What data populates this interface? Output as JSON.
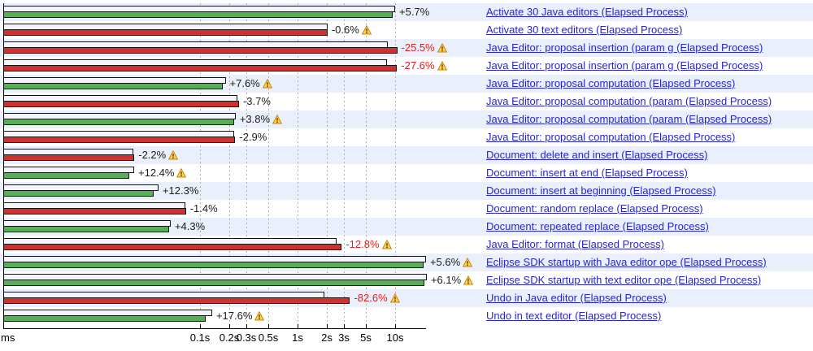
{
  "colors": {
    "row_bg_alt": "#e9effb",
    "row_bg": "#ffffff",
    "reference_bar_fill": "#f4f4fb",
    "bar_border": "#141414",
    "improvement_green": "#55b055",
    "regression_red": "#cf3030",
    "link_blue": "#2626cc",
    "percent_label_black": "#1c1c1c",
    "percent_label_red": "#e41c1c",
    "gridline_gray": "#b0b0b0",
    "warning_icon_fill": "#ffd24d",
    "warning_icon_border": "#c8830e",
    "warning_icon_glyph": "#5a3a00"
  },
  "icons": {
    "warning": "warning-triangle-icon"
  },
  "chart_data": {
    "type": "bar",
    "orientation": "horizontal",
    "scale": "logarithmic-time",
    "bars_per_row": [
      "reference elapsed time (white)",
      "current elapsed time (green=faster, red=slower)"
    ],
    "axis": {
      "unit_label": "ms",
      "ticks": [
        {
          "label": "ms",
          "ms": 1,
          "gridline": false
        },
        {
          "label": "0.1s",
          "ms": 100,
          "gridline": true
        },
        {
          "label": "0.2s",
          "ms": 200,
          "gridline": true
        },
        {
          "label": "0.3s",
          "ms": 300,
          "gridline": true
        },
        {
          "label": "0.5s",
          "ms": 500,
          "gridline": true
        },
        {
          "label": "1s",
          "ms": 1000,
          "gridline": true
        },
        {
          "label": "2s",
          "ms": 2000,
          "gridline": true
        },
        {
          "label": "3s",
          "ms": 3000,
          "gridline": true
        },
        {
          "label": "5s",
          "ms": 5000,
          "gridline": true
        },
        {
          "label": "10s",
          "ms": 10000,
          "gridline": true
        }
      ]
    },
    "series": [
      {
        "name": "Activate 30 Java editors (Elapsed Process)",
        "percent": "+5.7%",
        "percent_red": false,
        "warning": false,
        "regression": false,
        "ref_ms": 10000,
        "cur_ms": 9460
      },
      {
        "name": "Activate 30 text editors (Elapsed Process)",
        "percent": "-0.6%",
        "percent_red": false,
        "warning": true,
        "regression": true,
        "ref_ms": 2020,
        "cur_ms": 2032
      },
      {
        "name": "Java Editor: proposal insertion (param g (Elapsed Process)",
        "percent": "-25.5%",
        "percent_red": true,
        "warning": true,
        "regression": true,
        "ref_ms": 8370,
        "cur_ms": 10500
      },
      {
        "name": "Java Editor: proposal insertion (param g (Elapsed Process)",
        "percent": "-27.6%",
        "percent_red": true,
        "warning": true,
        "regression": true,
        "ref_ms": 8200,
        "cur_ms": 10460
      },
      {
        "name": "Java Editor: proposal computation (Elapsed Process)",
        "percent": "+7.6%",
        "percent_red": false,
        "warning": true,
        "regression": false,
        "ref_ms": 184,
        "cur_ms": 171
      },
      {
        "name": "Java Editor: proposal computation (param (Elapsed Process)",
        "percent": "-3.7%",
        "percent_red": false,
        "warning": false,
        "regression": true,
        "ref_ms": 243,
        "cur_ms": 252
      },
      {
        "name": "Java Editor: proposal computation (param (Elapsed Process)",
        "percent": "+3.8%",
        "percent_red": false,
        "warning": true,
        "regression": false,
        "ref_ms": 233,
        "cur_ms": 225
      },
      {
        "name": "Java Editor: proposal computation (Elapsed Process)",
        "percent": "-2.9%",
        "percent_red": false,
        "warning": false,
        "regression": true,
        "ref_ms": 225,
        "cur_ms": 231
      },
      {
        "name": "Document: delete and insert (Elapsed Process)",
        "percent": "-2.2%",
        "percent_red": false,
        "warning": true,
        "regression": true,
        "ref_ms": 20.9,
        "cur_ms": 21.4
      },
      {
        "name": "Document: insert at end (Elapsed Process)",
        "percent": "+12.4%",
        "percent_red": false,
        "warning": true,
        "regression": false,
        "ref_ms": 21.3,
        "cur_ms": 19.0
      },
      {
        "name": "Document: insert at beginning (Elapsed Process)",
        "percent": "+12.3%",
        "percent_red": false,
        "warning": false,
        "regression": false,
        "ref_ms": 37.8,
        "cur_ms": 33.7
      },
      {
        "name": "Document: random replace (Elapsed Process)",
        "percent": "-1.4%",
        "percent_red": false,
        "warning": false,
        "regression": true,
        "ref_ms": 71.2,
        "cur_ms": 72.2
      },
      {
        "name": "Document: repeated replace (Elapsed Process)",
        "percent": "+4.3%",
        "percent_red": false,
        "warning": false,
        "regression": false,
        "ref_ms": 50.4,
        "cur_ms": 48.3
      },
      {
        "name": "Java Editor: format (Elapsed Process)",
        "percent": "-12.8%",
        "percent_red": true,
        "warning": true,
        "regression": true,
        "ref_ms": 2520,
        "cur_ms": 2842
      },
      {
        "name": "Eclipse SDK startup with Java editor ope (Elapsed Process)",
        "percent": "+5.6%",
        "percent_red": false,
        "warning": true,
        "regression": false,
        "ref_ms": 20700,
        "cur_ms": 19600
      },
      {
        "name": "Eclipse SDK startup with text editor ope (Elapsed Process)",
        "percent": "+6.1%",
        "percent_red": false,
        "warning": true,
        "regression": false,
        "ref_ms": 21100,
        "cur_ms": 19890
      },
      {
        "name": "Undo in Java editor (Elapsed Process)",
        "percent": "-82.6%",
        "percent_red": true,
        "warning": true,
        "regression": true,
        "ref_ms": 1890,
        "cur_ms": 3450
      },
      {
        "name": "Undo in text editor (Elapsed Process)",
        "percent": "+17.6%",
        "percent_red": false,
        "warning": true,
        "regression": false,
        "ref_ms": 134,
        "cur_ms": 114
      }
    ]
  }
}
